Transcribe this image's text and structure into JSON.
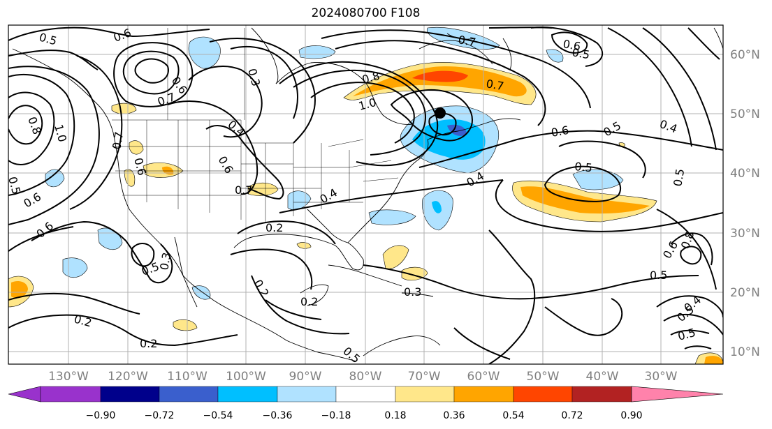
{
  "title": "2024080700 F108",
  "map": {
    "lat_labels": [
      "60°N",
      "50°N",
      "40°N",
      "30°N",
      "20°N",
      "10°N"
    ],
    "lon_labels": [
      "130°W",
      "120°W",
      "110°W",
      "100°W",
      "90°W",
      "80°W",
      "70°W",
      "60°W",
      "50°W",
      "40°W",
      "30°W"
    ],
    "contour_labels": [
      "0.5",
      "0.6",
      "0.6",
      "0.7",
      "0.8",
      "1.0",
      "0.7",
      "0.6",
      "0.3",
      "0.4",
      "0.6",
      "0.7",
      "0.8",
      "1.0",
      "0.7",
      "0.7",
      "0.6",
      "0.5",
      "0.6",
      "0.5",
      "0.4",
      "0.5",
      "0.5",
      "0.4",
      "0.4",
      "0.2",
      "0.5",
      "0.6",
      "0.6",
      "0.5",
      "0.3",
      "0.2",
      "0.2",
      "0.2",
      "0.3",
      "0.5",
      "0.2",
      "0.6",
      "0.8",
      "0.5",
      "0.5",
      "0.4",
      "0.5"
    ],
    "marker": "black-dot"
  },
  "colorbar": {
    "colors": [
      "#9932cc",
      "#00008b",
      "#3a5fcd",
      "#00bfff",
      "#b0e2ff",
      "#ffffff",
      "#ffe78a",
      "#ffa500",
      "#ff4500",
      "#b22222",
      "#ff82ab"
    ],
    "ticks": [
      "−0.90",
      "−0.72",
      "−0.54",
      "−0.36",
      "−0.18",
      "0.18",
      "0.36",
      "0.54",
      "0.72",
      "0.90"
    ]
  }
}
